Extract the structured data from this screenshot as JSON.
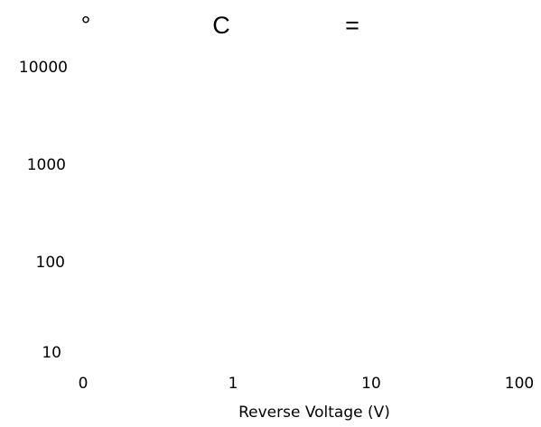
{
  "chart_data": {
    "type": "line",
    "title_parts": [
      "°",
      "C",
      "="
    ],
    "xlabel": "Reverse Voltage (V)",
    "ylabel": "",
    "x_scale": "log",
    "y_scale": "log",
    "x_ticks": [
      "0",
      "1",
      "10",
      "100"
    ],
    "y_ticks": [
      "10000",
      "1000",
      "100",
      "10"
    ],
    "ylim": [
      10,
      10000
    ],
    "grid": false,
    "series": []
  }
}
